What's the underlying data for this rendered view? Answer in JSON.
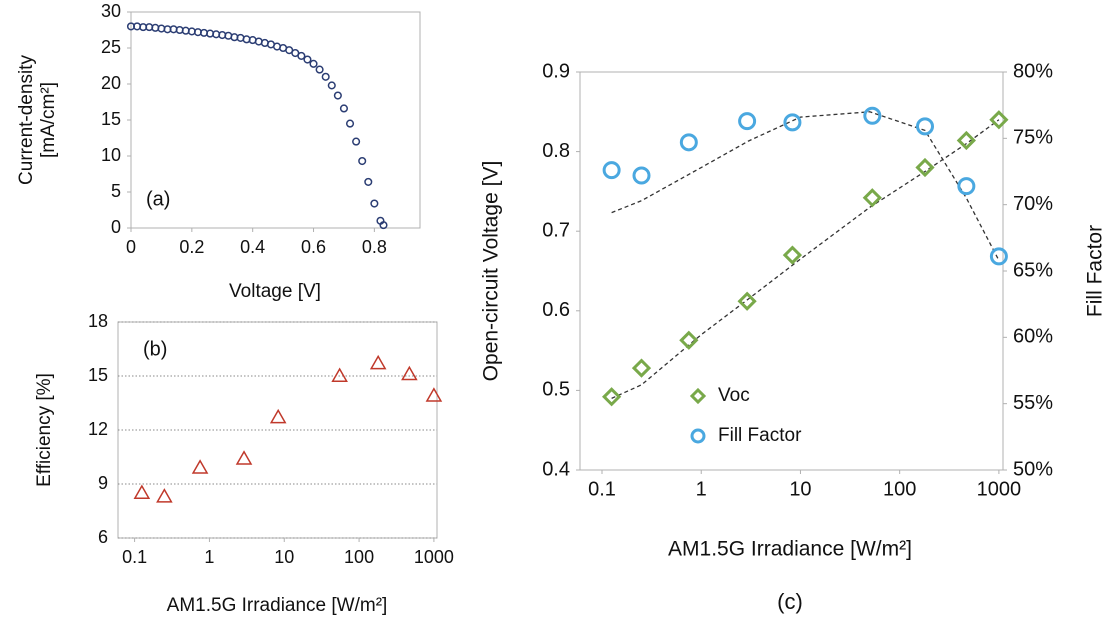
{
  "chart_data": [
    {
      "type": "scatter",
      "annotation": "(a)",
      "xlabel": "Voltage [V]",
      "ylabel": [
        "Current-density",
        "[mA/cm²]"
      ],
      "xlim": [
        0,
        0.95
      ],
      "xticks": [
        0,
        0.2,
        0.4,
        0.6,
        0.8
      ],
      "ylim": [
        0,
        30
      ],
      "yticks": [
        0,
        5,
        10,
        15,
        20,
        25,
        30
      ],
      "series": [
        {
          "color": "#2b3d73",
          "marker": "circle",
          "x": [
            0,
            0.02,
            0.04,
            0.06,
            0.08,
            0.1,
            0.12,
            0.14,
            0.16,
            0.18,
            0.2,
            0.22,
            0.24,
            0.26,
            0.28,
            0.3,
            0.32,
            0.34,
            0.36,
            0.38,
            0.4,
            0.42,
            0.44,
            0.46,
            0.48,
            0.5,
            0.52,
            0.54,
            0.56,
            0.58,
            0.6,
            0.62,
            0.64,
            0.66,
            0.68,
            0.7,
            0.72,
            0.74,
            0.76,
            0.78,
            0.8,
            0.82,
            0.83
          ],
          "values": [
            28.0,
            28.0,
            27.9,
            27.9,
            27.8,
            27.7,
            27.6,
            27.6,
            27.5,
            27.4,
            27.3,
            27.2,
            27.1,
            27.0,
            26.9,
            26.8,
            26.7,
            26.5,
            26.4,
            26.2,
            26.1,
            25.9,
            25.7,
            25.5,
            25.2,
            25.0,
            24.7,
            24.3,
            23.9,
            23.4,
            22.8,
            22.0,
            21.0,
            19.8,
            18.4,
            16.6,
            14.5,
            12.0,
            9.3,
            6.4,
            3.4,
            1.0,
            0.4
          ]
        }
      ]
    },
    {
      "type": "scatter",
      "annotation": "(b)",
      "xlabel": "AM1.5G Irradiance [W/m²]",
      "ylabel": "Efficiency [%]",
      "log_x": true,
      "xlim": [
        0.06,
        1100
      ],
      "xticks": [
        0.1,
        1,
        10,
        100,
        1000
      ],
      "ylim": [
        6,
        18
      ],
      "yticks": [
        6,
        9,
        12,
        15,
        18
      ],
      "grid": "dotted",
      "series": [
        {
          "color": "#c0392b",
          "marker": "triangle",
          "x": [
            0.125,
            0.25,
            0.75,
            2.9,
            8.3,
            55,
            180,
            470,
            1000
          ],
          "values": [
            8.5,
            8.3,
            9.9,
            10.4,
            12.7,
            15.0,
            15.7,
            15.1,
            13.9
          ]
        }
      ]
    },
    {
      "type": "scatter",
      "annotation": "(c)",
      "xlabel": "AM1.5G Irradiance [W/m²]",
      "ylabel": "Open-circuit Voltage [V]",
      "y2label": "Fill Factor",
      "log_x": true,
      "xlim": [
        0.06,
        1100
      ],
      "xticks": [
        0.1,
        1,
        10,
        100,
        1000
      ],
      "ylim": [
        0.4,
        0.9
      ],
      "yticks": [
        0.4,
        0.5,
        0.6,
        0.7,
        0.8,
        0.9
      ],
      "y2lim": [
        50,
        80
      ],
      "y2ticks": [
        {
          "value": 50,
          "label": "50%"
        },
        {
          "value": 55,
          "label": "55%"
        },
        {
          "value": 60,
          "label": "60%"
        },
        {
          "value": 65,
          "label": "65%"
        },
        {
          "value": 70,
          "label": "70%"
        },
        {
          "value": 75,
          "label": "75%"
        },
        {
          "value": 80,
          "label": "80%"
        }
      ],
      "legend": "lower center",
      "series": [
        {
          "color": "#333333",
          "line": "dashed",
          "x": [
            0.125,
            0.25,
            1,
            3,
            10,
            50,
            180,
            470,
            1000
          ],
          "values": [
            0.49,
            0.507,
            0.57,
            0.615,
            0.665,
            0.73,
            0.775,
            0.81,
            0.84
          ]
        },
        {
          "color": "#333333",
          "line": "dashed",
          "axis": "y2",
          "x": [
            0.125,
            0.25,
            1,
            3,
            10,
            50,
            180,
            470,
            1000
          ],
          "values": [
            69.4,
            70.3,
            72.8,
            74.8,
            76.6,
            77.0,
            75.6,
            70.5,
            65.8
          ]
        },
        {
          "name": "Voc",
          "color": "#79a94a",
          "marker": "diamond",
          "x": [
            0.125,
            0.25,
            0.75,
            2.9,
            8.3,
            53,
            180,
            470,
            1000
          ],
          "values": [
            0.492,
            0.528,
            0.563,
            0.612,
            0.67,
            0.742,
            0.78,
            0.814,
            0.84
          ]
        },
        {
          "name": "Fill Factor",
          "color": "#4aa8e0",
          "marker": "circle",
          "axis": "y2",
          "x": [
            0.125,
            0.25,
            0.75,
            2.9,
            8.3,
            53,
            180,
            470,
            1000
          ],
          "values": [
            72.6,
            72.2,
            74.7,
            76.3,
            76.2,
            76.7,
            75.9,
            71.4,
            66.1
          ]
        }
      ]
    }
  ]
}
